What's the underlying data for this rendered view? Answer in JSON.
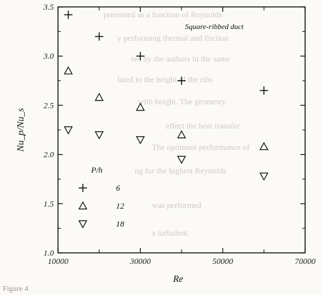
{
  "chart_data": {
    "type": "scatter",
    "title": "",
    "annotation": "Square-ribbed duct",
    "xlabel": "Re",
    "ylabel": "Nu_p/Nu_s",
    "xlim": [
      10000,
      70000
    ],
    "ylim": [
      1.0,
      3.5
    ],
    "xticks": [
      10000,
      30000,
      50000,
      70000
    ],
    "yticks": [
      1.0,
      1.5,
      2.0,
      2.5,
      3.0,
      3.5
    ],
    "xtick_labels": [
      "10000",
      "30000",
      "50000",
      "70000"
    ],
    "ytick_labels": [
      "1.0",
      "1.5",
      "2.0",
      "2.5",
      "3.0",
      "3.5"
    ],
    "legend_title": "P/h",
    "legend_position": "left",
    "grid": false,
    "series": [
      {
        "name": "6",
        "marker": "plus",
        "x": [
          12500,
          20000,
          30000,
          40000,
          60000
        ],
        "y": [
          3.42,
          3.2,
          3.0,
          2.75,
          2.65
        ]
      },
      {
        "name": "12",
        "marker": "triangle-up",
        "x": [
          12500,
          20000,
          30000,
          40000,
          60000
        ],
        "y": [
          2.85,
          2.58,
          2.48,
          2.2,
          2.08
        ]
      },
      {
        "name": "18",
        "marker": "triangle-down",
        "x": [
          12500,
          20000,
          30000,
          40000,
          60000
        ],
        "y": [
          2.25,
          2.2,
          2.15,
          1.95,
          1.78
        ]
      }
    ]
  },
  "caption": "Figure 4",
  "background_text": [
    "presented as a function of Reynolds",
    "y performing thermal and friction",
    "ted by the authors in the same",
    "lated to the height of the ribs",
    "with height. The geometry",
    "effect the heat transfer",
    "The optimum performance of",
    "ng for the highest Reynolds",
    "was performed",
    "a turbulent."
  ]
}
